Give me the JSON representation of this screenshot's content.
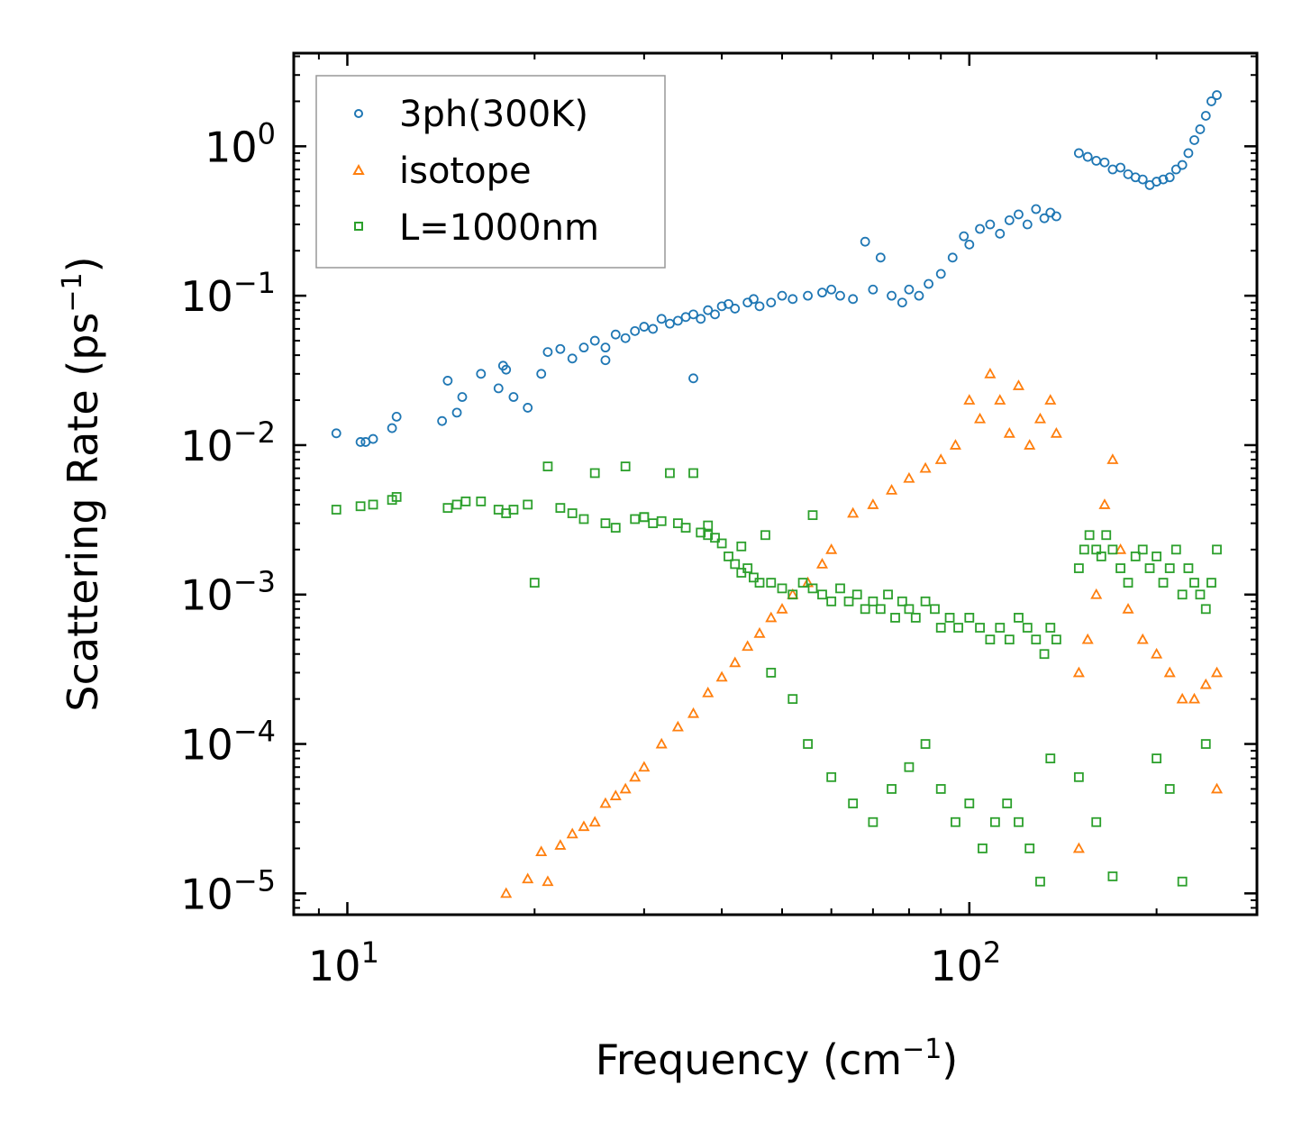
{
  "chart_data": {
    "type": "scatter",
    "title": "",
    "xlabel": "Frequency (cm",
    "xlabel_sup": "−1",
    "xlabel_end": ")",
    "ylabel": "Scattering Rate (ps",
    "ylabel_sup": "−1",
    "ylabel_end": ")",
    "xscale": "log",
    "yscale": "log",
    "xlim": [
      8.2,
      290
    ],
    "ylim": [
      7.2e-06,
      4.2
    ],
    "x_ticks": [
      {
        "value": 10,
        "base": "10",
        "exp": "1"
      },
      {
        "value": 100,
        "base": "10",
        "exp": "2"
      }
    ],
    "y_ticks": [
      {
        "value": 1,
        "base": "10",
        "exp": "0"
      },
      {
        "value": 0.1,
        "base": "10",
        "exp": "−1"
      },
      {
        "value": 0.01,
        "base": "10",
        "exp": "−2"
      },
      {
        "value": 0.001,
        "base": "10",
        "exp": "−3"
      },
      {
        "value": 0.0001,
        "base": "10",
        "exp": "−4"
      },
      {
        "value": 1e-05,
        "base": "10",
        "exp": "−5"
      }
    ],
    "legend_position": "top-left",
    "series": [
      {
        "name": "3ph(300K)",
        "marker": "circle",
        "color": "#1f77b4",
        "x": [
          9.6,
          10.5,
          10.7,
          11.0,
          11.8,
          12.0,
          14.2,
          14.5,
          15.0,
          15.3,
          16.4,
          17.5,
          17.8,
          18.0,
          18.5,
          19.5,
          20.5,
          21.0,
          22.0,
          23.0,
          24.0,
          25.0,
          26.0,
          27.0,
          28.0,
          29.0,
          30.0,
          31.0,
          32.0,
          33.0,
          34.0,
          35.0,
          36.0,
          37.0,
          38.0,
          39.0,
          40.0,
          41.0,
          42.0,
          44.0,
          45.0,
          46.0,
          48.0,
          50.0,
          52.0,
          55.0,
          58.0,
          60.0,
          62.0,
          65.0,
          68.0,
          70.0,
          72.0,
          75.0,
          78.0,
          80.0,
          83.0,
          86.0,
          90.0,
          94.0,
          98.0,
          100.0,
          104.0,
          108.0,
          112.0,
          116.0,
          120.0,
          124.0,
          128.0,
          132.0,
          135.0,
          138.0,
          150.0,
          155.0,
          160.0,
          165.0,
          170.0,
          175.0,
          180.0,
          185.0,
          190.0,
          195.0,
          200.0,
          205.0,
          210.0,
          215.0,
          220.0,
          225.0,
          230.0,
          235.0,
          240.0,
          245.0,
          250.0,
          36.0,
          26.0
        ],
        "y": [
          0.012,
          0.0105,
          0.0105,
          0.011,
          0.013,
          0.0155,
          0.0145,
          0.027,
          0.0165,
          0.021,
          0.03,
          0.024,
          0.034,
          0.032,
          0.021,
          0.0178,
          0.03,
          0.042,
          0.044,
          0.038,
          0.045,
          0.05,
          0.045,
          0.055,
          0.052,
          0.058,
          0.062,
          0.06,
          0.07,
          0.065,
          0.068,
          0.072,
          0.075,
          0.07,
          0.08,
          0.075,
          0.085,
          0.088,
          0.082,
          0.09,
          0.095,
          0.085,
          0.09,
          0.1,
          0.095,
          0.1,
          0.105,
          0.11,
          0.1,
          0.095,
          0.23,
          0.11,
          0.18,
          0.1,
          0.09,
          0.11,
          0.1,
          0.12,
          0.14,
          0.18,
          0.25,
          0.22,
          0.28,
          0.3,
          0.26,
          0.32,
          0.35,
          0.3,
          0.38,
          0.33,
          0.36,
          0.34,
          0.9,
          0.85,
          0.8,
          0.78,
          0.7,
          0.72,
          0.65,
          0.62,
          0.6,
          0.55,
          0.58,
          0.6,
          0.62,
          0.7,
          0.75,
          0.9,
          1.1,
          1.3,
          1.6,
          2.0,
          2.2,
          0.028,
          0.037
        ]
      },
      {
        "name": "isotope",
        "marker": "triangle",
        "color": "#ff7f0e",
        "x": [
          18.0,
          19.5,
          20.5,
          21.0,
          22.0,
          23.0,
          24.0,
          25.0,
          26.0,
          27.0,
          28.0,
          29.0,
          30.0,
          32.0,
          34.0,
          36.0,
          38.0,
          40.0,
          42.0,
          44.0,
          46.0,
          48.0,
          50.0,
          52.0,
          55.0,
          58.0,
          60.0,
          65.0,
          70.0,
          75.0,
          80.0,
          85.0,
          90.0,
          95.0,
          100.0,
          104.0,
          108.0,
          112.0,
          116.0,
          120.0,
          125.0,
          130.0,
          135.0,
          138.0,
          150.0,
          155.0,
          160.0,
          165.0,
          170.0,
          175.0,
          180.0,
          190.0,
          200.0,
          210.0,
          220.0,
          230.0,
          240.0,
          250.0,
          150.0,
          250.0
        ],
        "y": [
          1e-05,
          1.25e-05,
          1.9e-05,
          1.2e-05,
          2.1e-05,
          2.5e-05,
          2.8e-05,
          3e-05,
          4e-05,
          4.5e-05,
          5e-05,
          6e-05,
          7e-05,
          0.0001,
          0.00013,
          0.00016,
          0.00022,
          0.00028,
          0.00035,
          0.00045,
          0.00055,
          0.0007,
          0.0008,
          0.001,
          0.0012,
          0.0016,
          0.002,
          0.0035,
          0.004,
          0.005,
          0.006,
          0.007,
          0.008,
          0.01,
          0.02,
          0.015,
          0.03,
          0.02,
          0.012,
          0.025,
          0.01,
          0.015,
          0.02,
          0.012,
          0.0003,
          0.0005,
          0.001,
          0.004,
          0.008,
          0.002,
          0.0008,
          0.0005,
          0.0004,
          0.0003,
          0.0002,
          0.0002,
          0.00025,
          0.0003,
          2e-05,
          5e-05
        ]
      },
      {
        "name": "L=1000nm",
        "marker": "square",
        "color": "#2ca02c",
        "x": [
          9.6,
          10.5,
          11.0,
          11.8,
          12.0,
          14.5,
          15.0,
          15.5,
          16.4,
          17.5,
          18.0,
          18.5,
          19.5,
          20.0,
          21.0,
          22.0,
          23.0,
          24.0,
          25.0,
          26.0,
          27.0,
          28.0,
          29.0,
          30.0,
          31.0,
          32.0,
          33.0,
          34.0,
          35.0,
          36.0,
          37.0,
          38.0,
          39.0,
          40.0,
          41.0,
          42.0,
          43.0,
          44.0,
          45.0,
          46.0,
          48.0,
          50.0,
          52.0,
          54.0,
          56.0,
          58.0,
          60.0,
          62.0,
          64.0,
          66.0,
          68.0,
          70.0,
          72.0,
          74.0,
          76.0,
          78.0,
          80.0,
          82.0,
          85.0,
          88.0,
          90.0,
          93.0,
          96.0,
          100.0,
          104.0,
          108.0,
          112.0,
          116.0,
          120.0,
          124.0,
          128.0,
          132.0,
          135.0,
          138.0,
          150.0,
          153.0,
          156.0,
          160.0,
          163.0,
          166.0,
          170.0,
          175.0,
          180.0,
          185.0,
          190.0,
          195.0,
          200.0,
          205.0,
          210.0,
          215.0,
          220.0,
          225.0,
          230.0,
          235.0,
          240.0,
          245.0,
          250.0,
          48.0,
          52.0,
          55.0,
          60.0,
          65.0,
          70.0,
          75.0,
          80.0,
          85.0,
          90.0,
          95.0,
          100.0,
          105.0,
          110.0,
          115.0,
          120.0,
          125.0,
          130.0,
          135.0,
          150.0,
          160.0,
          170.0,
          200.0,
          210.0,
          220.0,
          240.0,
          30.0,
          38.0,
          43.0,
          47.0,
          56.0
        ],
        "y": [
          0.0037,
          0.0039,
          0.004,
          0.0043,
          0.0045,
          0.0038,
          0.004,
          0.0042,
          0.0042,
          0.0037,
          0.0035,
          0.0037,
          0.004,
          0.0012,
          0.0072,
          0.0038,
          0.0035,
          0.0032,
          0.0065,
          0.003,
          0.0028,
          0.0072,
          0.0032,
          0.0033,
          0.003,
          0.0031,
          0.0065,
          0.003,
          0.0028,
          0.0065,
          0.0026,
          0.0025,
          0.0024,
          0.0022,
          0.0018,
          0.0016,
          0.0014,
          0.0015,
          0.0013,
          0.0012,
          0.0012,
          0.0011,
          0.001,
          0.0012,
          0.0011,
          0.001,
          0.0009,
          0.0011,
          0.0009,
          0.001,
          0.0008,
          0.0009,
          0.0008,
          0.001,
          0.0007,
          0.0009,
          0.0008,
          0.0007,
          0.0009,
          0.0008,
          0.0006,
          0.0007,
          0.0006,
          0.0007,
          0.0006,
          0.0005,
          0.0006,
          0.0005,
          0.0007,
          0.0006,
          0.0005,
          0.0004,
          0.0006,
          0.0005,
          0.0015,
          0.002,
          0.0025,
          0.002,
          0.0018,
          0.0025,
          0.002,
          0.0015,
          0.0012,
          0.0018,
          0.002,
          0.0015,
          0.0018,
          0.0012,
          0.0015,
          0.002,
          0.001,
          0.0015,
          0.0012,
          0.001,
          0.0008,
          0.0012,
          0.002,
          0.0003,
          0.0002,
          0.0001,
          6e-05,
          4e-05,
          3e-05,
          5e-05,
          7e-05,
          0.0001,
          5e-05,
          3e-05,
          4e-05,
          2e-05,
          3e-05,
          4e-05,
          3e-05,
          2e-05,
          1.2e-05,
          8e-05,
          6e-05,
          3e-05,
          1.3e-05,
          8e-05,
          5e-05,
          1.2e-05,
          0.0001,
          0.0033,
          0.0029,
          0.0021,
          0.0025,
          0.0034
        ]
      }
    ]
  }
}
